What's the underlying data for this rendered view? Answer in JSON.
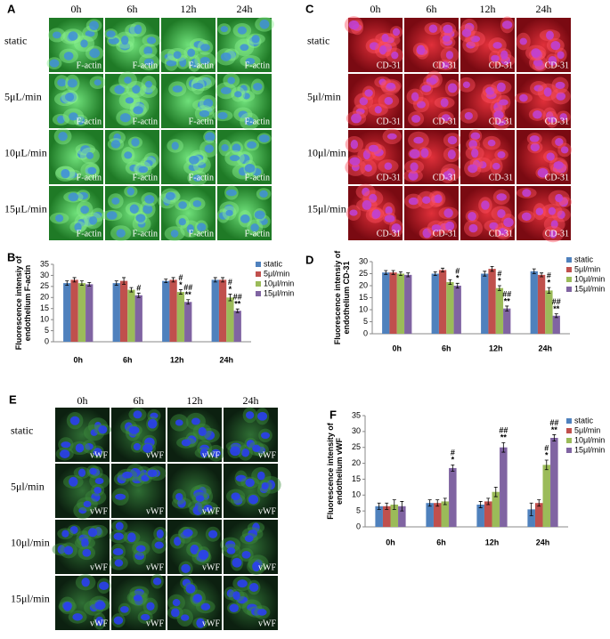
{
  "panels": [
    {
      "label": "A",
      "columns": [
        "0h",
        "6h",
        "12h",
        "24h"
      ],
      "rows": [
        "static",
        "5μL/min",
        "10μL/min",
        "15μL/min"
      ],
      "stain": "F-actin"
    },
    {
      "label": "C",
      "columns": [
        "0h",
        "6h",
        "12h",
        "24h"
      ],
      "rows": [
        "static",
        "5μl/min",
        "10μl/min",
        "15μl/min"
      ],
      "stain": "CD-31"
    },
    {
      "label": "E",
      "columns": [
        "0h",
        "6h",
        "12h",
        "24h"
      ],
      "rows": [
        "static",
        "5μl/min",
        "10μl/min",
        "15μl/min"
      ],
      "stain": "vWF"
    }
  ],
  "chart_data": [
    {
      "type": "bar",
      "label": "B",
      "y_label": [
        "Fluorescence intensiy of",
        "endothelium F-actin"
      ],
      "categories": [
        "0h",
        "6h",
        "12h",
        "24h"
      ],
      "ylim": [
        0,
        35
      ],
      "yticks": [
        0,
        5,
        10,
        15,
        20,
        25,
        30,
        35
      ],
      "legend": "upper right",
      "series": [
        {
          "name": "static",
          "color": "#4f81bd",
          "values": [
            26.5,
            26.5,
            27.5,
            28
          ],
          "errors": [
            1,
            1,
            0.8,
            1
          ],
          "significance": [
            [],
            [],
            [],
            []
          ]
        },
        {
          "name": "5μl/min",
          "color": "#c0504d",
          "values": [
            28,
            27.5,
            28,
            28
          ],
          "errors": [
            1,
            1.5,
            1,
            1
          ],
          "significance": [
            [],
            [],
            [],
            []
          ]
        },
        {
          "name": "10μl/min",
          "color": "#9bbb59",
          "values": [
            26.5,
            23.5,
            22.5,
            20
          ],
          "errors": [
            1,
            1,
            1,
            1.5
          ],
          "significance": [
            [],
            [],
            [
              "#",
              "*"
            ],
            [
              "#",
              "*"
            ]
          ]
        },
        {
          "name": "15μl/min",
          "color": "#8064a2",
          "values": [
            26,
            21,
            18,
            14
          ],
          "errors": [
            0.8,
            1,
            1,
            0.8
          ],
          "significance": [
            [],
            [
              "#"
            ],
            [
              "##",
              "**"
            ],
            [
              "##",
              "**"
            ]
          ]
        }
      ]
    },
    {
      "type": "bar",
      "label": "D",
      "y_label": [
        "Fluorescence intensiy of",
        "endothelium CD-31"
      ],
      "categories": [
        "0h",
        "6h",
        "12h",
        "24h"
      ],
      "ylim": [
        0,
        30
      ],
      "yticks": [
        0,
        5,
        10,
        15,
        20,
        25,
        30
      ],
      "legend": "upper right",
      "series": [
        {
          "name": "static",
          "color": "#4f81bd",
          "values": [
            25.5,
            25,
            25,
            26
          ],
          "errors": [
            0.8,
            0.8,
            1,
            1
          ],
          "significance": [
            [],
            [],
            [],
            []
          ]
        },
        {
          "name": "5μl/min",
          "color": "#c0504d",
          "values": [
            25.5,
            26.5,
            27,
            24.5
          ],
          "errors": [
            0.8,
            0.8,
            1,
            0.8
          ],
          "significance": [
            [],
            [],
            [],
            []
          ]
        },
        {
          "name": "10μl/min",
          "color": "#9bbb59",
          "values": [
            25,
            21.5,
            19,
            18
          ],
          "errors": [
            0.8,
            1,
            1,
            1.2
          ],
          "significance": [
            [],
            [],
            [
              "#",
              "*"
            ],
            [
              "#",
              "*"
            ]
          ]
        },
        {
          "name": "15μl/min",
          "color": "#8064a2",
          "values": [
            24.5,
            20,
            10.5,
            7.5
          ],
          "errors": [
            0.8,
            1,
            1,
            0.8
          ],
          "significance": [
            [],
            [
              "#",
              "*"
            ],
            [
              "##",
              "**"
            ],
            [
              "##",
              "**"
            ]
          ]
        }
      ]
    },
    {
      "type": "bar",
      "label": "F",
      "y_label": [
        "Fluorescence intensity of",
        "endothelium vWF"
      ],
      "categories": [
        "0h",
        "6h",
        "12h",
        "24h"
      ],
      "ylim": [
        0,
        35
      ],
      "yticks": [
        0,
        5,
        10,
        15,
        20,
        25,
        30,
        35
      ],
      "legend": "upper right",
      "series": [
        {
          "name": "static",
          "color": "#4f81bd",
          "values": [
            6.5,
            7.5,
            7,
            5.5
          ],
          "errors": [
            1,
            1,
            1,
            2
          ],
          "significance": [
            [],
            [],
            [],
            []
          ]
        },
        {
          "name": "5μl/min",
          "color": "#c0504d",
          "values": [
            6.5,
            7.5,
            8,
            7.5
          ],
          "errors": [
            1,
            1,
            1,
            1
          ],
          "significance": [
            [],
            [],
            [],
            []
          ]
        },
        {
          "name": "10μl/min",
          "color": "#9bbb59",
          "values": [
            7,
            8,
            11,
            19.5
          ],
          "errors": [
            1.5,
            1,
            1.5,
            1.5
          ],
          "significance": [
            [],
            [],
            [],
            [
              "#",
              "*"
            ]
          ]
        },
        {
          "name": "15μl/min",
          "color": "#8064a2",
          "values": [
            6.5,
            18.5,
            25,
            28
          ],
          "errors": [
            1.5,
            1,
            1.5,
            1
          ],
          "significance": [
            [],
            [
              "#",
              "*"
            ],
            [
              "##",
              "**"
            ],
            [
              "##",
              "**"
            ]
          ]
        }
      ]
    }
  ]
}
